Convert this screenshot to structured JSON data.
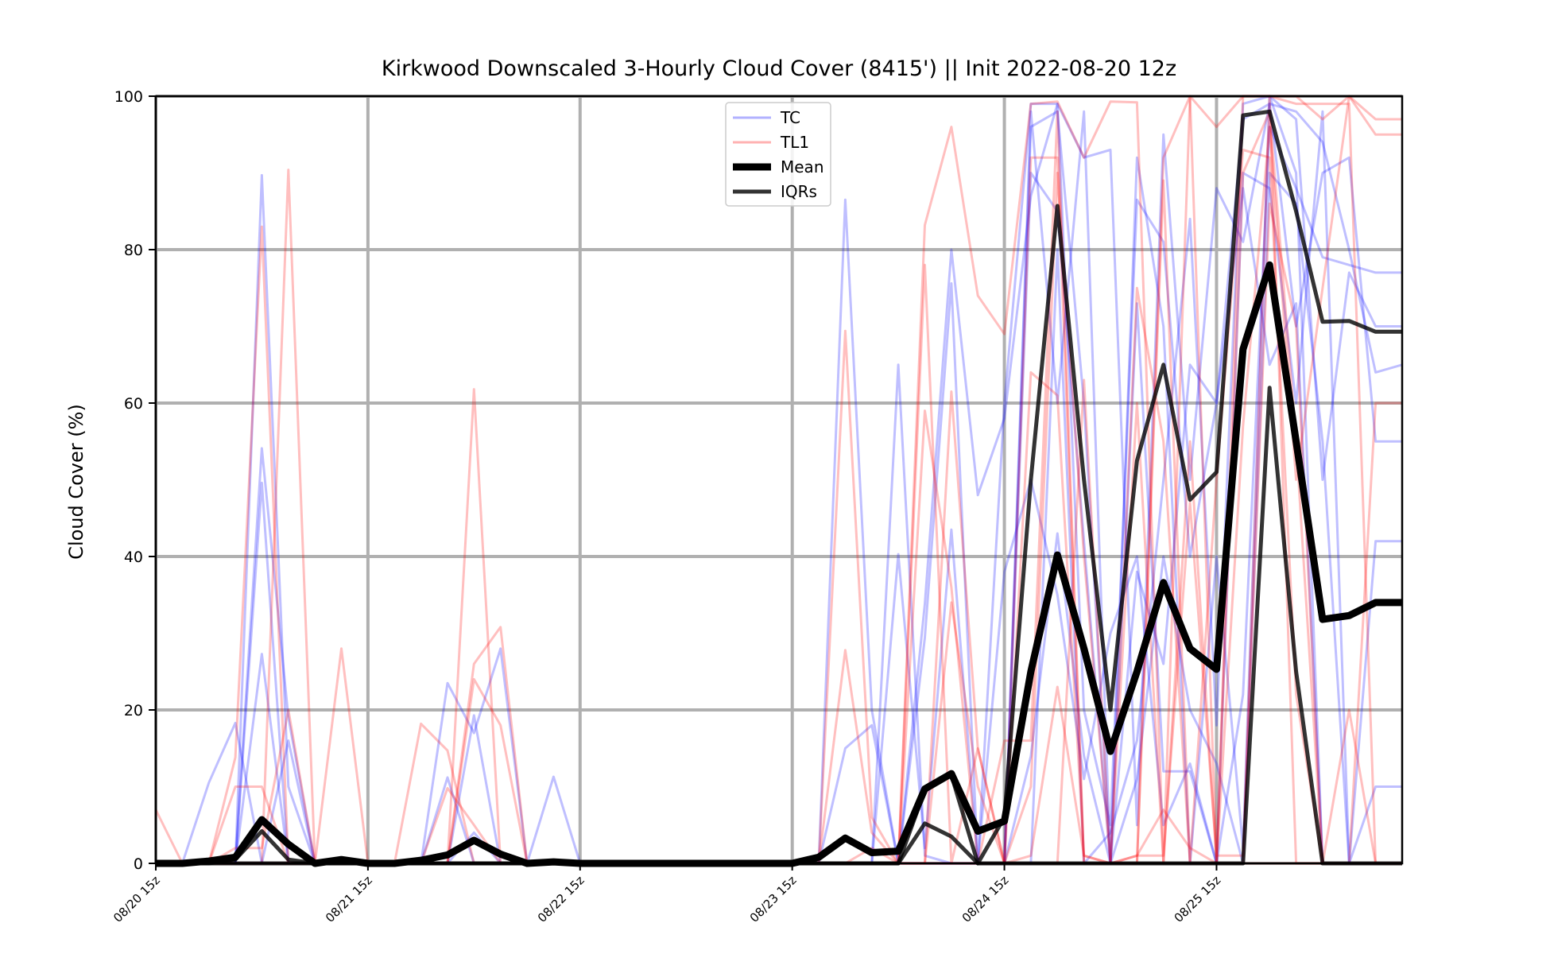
{
  "chart_data": {
    "type": "line",
    "title": "Kirkwood Downscaled 3-Hourly Cloud Cover (8415') || Init 2022-08-20 12z",
    "xlabel": "",
    "ylabel": "Cloud Cover (%)",
    "ylim": [
      0,
      100
    ],
    "yticks": [
      0,
      20,
      40,
      60,
      80,
      100
    ],
    "xticks": [
      "08/20 15z",
      "08/21 15z",
      "08/22 15z",
      "08/23 15z",
      "08/24 15z",
      "08/25 15z"
    ],
    "x_step": "3-hourly",
    "x_count": 48,
    "grid": true,
    "legend": {
      "placement": "upper center",
      "entries": [
        {
          "label": "TC",
          "color": "#0000ff",
          "style": "thin translucent"
        },
        {
          "label": "TL1",
          "color": "#ff0000",
          "style": "thin translucent"
        },
        {
          "label": "Mean",
          "color": "#000000",
          "style": "thick"
        },
        {
          "label": "IQRs",
          "color": "#000000",
          "style": "medium"
        }
      ]
    },
    "series": [
      {
        "name": "Mean",
        "values": [
          0,
          0,
          0.3,
          0.8,
          5.7,
          2.5,
          0,
          0.5,
          0,
          0,
          0.4,
          1.1,
          3.0,
          1.2,
          0,
          0.2,
          0,
          0,
          0,
          0,
          0,
          0,
          0,
          0,
          0,
          0.8,
          3.3,
          1.4,
          1.6,
          9.7,
          11.7,
          4.2,
          5.5,
          25,
          40.2,
          28,
          14.6,
          25,
          36.6,
          28,
          25.3,
          67,
          78,
          55,
          31.8,
          32.3,
          34,
          34
        ]
      },
      {
        "name": "IQRs",
        "values": [
          0,
          0,
          0,
          0,
          0,
          0,
          0,
          0,
          0,
          0,
          0,
          0,
          0,
          0,
          0,
          0,
          0,
          0,
          0,
          0,
          0,
          0,
          0,
          0,
          0,
          0,
          0,
          0,
          0,
          5.2,
          3.5,
          0,
          0,
          0,
          0,
          0,
          0,
          0,
          0,
          0,
          0,
          0,
          62,
          25,
          0,
          0,
          0,
          0
        ]
      },
      {
        "name": "IQRs",
        "values": [
          0,
          0,
          0,
          0.5,
          4.2,
          0.5,
          0,
          0,
          0,
          0,
          0,
          0,
          0,
          0,
          0,
          0,
          0,
          0,
          0,
          0,
          0,
          0,
          0,
          0,
          0,
          0,
          0,
          0,
          0,
          9.5,
          11.5,
          0,
          6,
          50,
          85.7,
          50,
          20,
          52.5,
          65,
          47.4,
          51,
          97.5,
          98,
          85,
          70.6,
          70.7,
          69.3,
          69.3
        ]
      }
    ],
    "members": {
      "TC": [
        [
          0,
          0,
          0,
          0,
          54.1,
          19,
          0,
          0,
          0,
          0,
          0,
          0,
          19.3,
          0,
          0,
          0,
          0,
          0,
          0,
          0,
          0,
          0,
          0,
          0,
          0,
          0,
          15,
          18,
          0,
          33.8,
          80,
          48,
          58,
          87,
          99,
          92,
          93,
          5,
          95,
          50,
          88,
          81,
          99,
          98,
          94,
          80,
          64,
          65
        ],
        [
          0,
          0,
          0,
          0,
          0,
          16,
          0,
          0,
          0,
          0,
          0,
          0,
          0,
          0,
          0,
          0,
          0,
          0,
          0,
          0,
          0,
          0,
          0,
          0,
          0,
          0,
          86.5,
          20,
          0,
          29.4,
          75.6,
          0,
          60,
          99,
          99,
          20,
          5,
          86.5,
          81,
          40,
          60,
          97,
          99,
          70,
          90,
          92,
          55,
          55
        ],
        [
          0,
          0,
          10.5,
          18.3,
          0,
          0,
          0,
          0,
          0,
          0,
          0,
          23.5,
          17,
          28,
          0,
          11.3,
          0,
          0,
          0,
          0,
          0,
          0,
          0,
          0,
          0,
          0,
          0,
          0,
          40.3,
          2,
          43.5,
          0,
          0,
          0,
          80,
          0,
          4,
          16,
          50,
          84,
          18,
          99,
          100,
          97,
          50,
          77,
          70,
          70
        ],
        [
          0,
          0,
          0,
          0,
          89.7,
          10,
          0,
          0,
          0,
          0,
          0,
          11.2,
          0,
          0,
          0,
          0,
          0,
          0,
          0,
          0,
          0,
          0,
          0,
          0,
          0,
          0,
          0,
          0,
          0,
          0,
          0,
          0,
          0,
          98,
          60,
          98,
          0,
          92,
          70,
          0,
          40,
          2,
          100,
          90,
          0,
          0,
          0,
          0
        ],
        [
          0,
          0,
          0,
          0,
          27.3,
          0,
          0,
          0,
          0,
          0,
          0,
          0,
          4,
          0,
          0,
          0,
          0,
          0,
          0,
          0,
          0,
          0,
          0,
          0,
          0,
          0,
          0,
          0,
          65,
          1,
          0,
          0,
          38,
          50,
          35,
          11,
          30,
          40,
          5,
          13,
          0,
          22,
          96,
          88,
          79,
          78,
          77,
          77
        ],
        [
          0,
          0,
          0,
          0,
          49.6,
          0,
          0,
          0,
          0,
          0,
          0,
          0,
          0,
          0,
          0,
          0,
          0,
          0,
          0,
          0,
          0,
          0,
          0,
          0,
          0,
          0,
          0,
          0,
          0,
          0,
          0,
          0,
          0,
          96,
          98,
          60,
          0,
          11,
          40,
          20,
          13,
          0,
          90,
          86,
          55,
          0,
          42,
          42
        ],
        [
          0,
          0,
          0,
          0,
          0,
          0,
          0,
          0,
          0,
          0,
          0,
          0,
          0,
          0,
          0,
          0,
          0,
          0,
          0,
          0,
          0,
          0,
          0,
          0,
          0,
          0,
          0,
          0,
          0,
          0,
          0,
          0,
          0,
          90,
          85,
          42,
          0,
          38,
          26,
          65,
          60,
          88,
          65,
          73,
          0,
          0,
          0,
          0
        ],
        [
          0,
          0,
          0,
          0,
          0,
          0,
          0,
          0,
          0,
          0,
          0,
          0,
          0,
          0,
          0,
          0,
          0,
          0,
          0,
          0,
          0,
          0,
          0,
          0,
          0,
          0,
          0,
          0,
          0,
          0,
          0,
          0,
          0,
          14,
          43,
          14,
          0,
          73,
          12,
          12,
          0,
          90,
          88,
          60,
          98,
          0,
          10,
          10
        ]
      ],
      "TL1": [
        [
          7,
          0,
          0,
          13.8,
          83,
          0,
          0,
          28,
          0,
          0,
          18.2,
          14.7,
          0,
          0,
          0,
          0,
          0,
          0,
          0,
          0,
          0,
          0,
          0,
          0,
          0,
          0,
          69.4,
          6,
          0,
          83.2,
          96,
          74,
          69,
          99,
          99.3,
          92,
          99.3,
          99.2,
          0,
          100,
          96,
          100,
          100,
          100,
          97,
          100,
          95,
          95
        ],
        [
          0,
          0,
          0,
          0,
          0,
          90.4,
          0,
          0,
          0,
          0,
          0,
          0,
          61.8,
          0,
          0,
          0,
          0,
          0,
          0,
          0,
          0,
          0,
          0,
          0,
          0,
          0,
          0,
          0,
          0,
          0,
          61.5,
          15,
          0,
          92,
          92,
          0,
          0,
          0,
          92,
          100,
          0,
          100,
          100,
          99,
          99,
          99,
          0,
          0
        ],
        [
          0,
          0,
          0,
          2,
          2,
          20,
          0,
          0,
          0,
          0,
          0,
          0,
          26,
          30.8,
          0,
          0,
          0,
          0,
          0,
          0,
          0,
          0,
          0,
          0,
          0,
          0,
          27.8,
          4,
          0,
          78,
          0,
          15,
          0,
          0,
          0,
          63,
          0,
          0,
          89,
          0,
          0,
          0,
          100,
          0,
          0,
          0,
          0,
          0
        ],
        [
          0,
          0,
          0,
          0,
          0,
          0,
          0,
          0,
          0,
          0,
          0,
          0,
          24,
          18,
          0,
          0,
          0,
          0,
          0,
          0,
          0,
          0,
          0,
          0,
          0,
          0,
          0,
          0,
          0,
          59,
          36,
          0,
          16,
          16,
          98,
          0,
          0,
          60,
          0,
          55,
          0,
          90,
          98,
          55,
          0,
          0,
          60,
          60
        ],
        [
          0,
          0,
          0,
          0,
          0,
          0,
          0,
          0,
          0,
          0,
          0,
          9.8,
          5,
          0,
          0,
          0,
          0,
          0,
          0,
          0,
          0,
          0,
          0,
          0,
          0,
          0,
          0,
          0,
          0,
          0,
          34,
          10,
          0,
          1,
          23,
          1,
          0,
          1,
          7,
          2,
          0,
          57,
          96,
          50,
          75,
          100,
          97,
          97
        ],
        [
          0,
          0,
          0,
          10,
          10,
          0,
          0,
          0,
          0,
          0,
          0,
          0,
          0,
          0,
          0,
          0,
          0,
          0,
          0,
          0,
          0,
          0,
          0,
          0,
          0,
          0,
          0,
          2,
          0,
          0,
          0,
          0,
          0,
          0,
          0,
          0,
          0,
          0,
          0,
          0,
          0,
          0,
          0,
          0,
          0,
          0,
          0,
          0
        ],
        [
          0,
          0,
          0,
          0,
          0,
          0,
          0,
          0,
          0,
          0,
          0,
          0,
          0,
          0,
          0,
          0,
          0,
          0,
          0,
          0,
          0,
          0,
          0,
          0,
          0,
          0,
          0,
          0,
          0,
          0,
          0,
          0,
          0,
          64,
          61,
          1,
          0,
          1,
          1,
          47,
          1,
          1,
          86,
          70,
          0,
          0,
          0,
          0
        ],
        [
          0,
          0,
          0,
          0,
          0,
          0,
          0,
          0,
          0,
          0,
          0,
          0,
          0,
          0,
          0,
          0,
          0,
          0,
          0,
          0,
          0,
          0,
          0,
          0,
          0,
          0,
          0,
          0,
          0,
          0,
          0,
          0,
          0,
          10,
          90,
          40,
          0,
          75,
          55,
          0,
          50,
          93,
          92,
          22,
          0,
          20,
          0,
          0
        ]
      ]
    }
  },
  "colors": {
    "TC": "#0000ff",
    "TL1": "#ff0000",
    "Mean": "#000000",
    "IQRs": "#000000",
    "grid": "#b0b0b0"
  }
}
